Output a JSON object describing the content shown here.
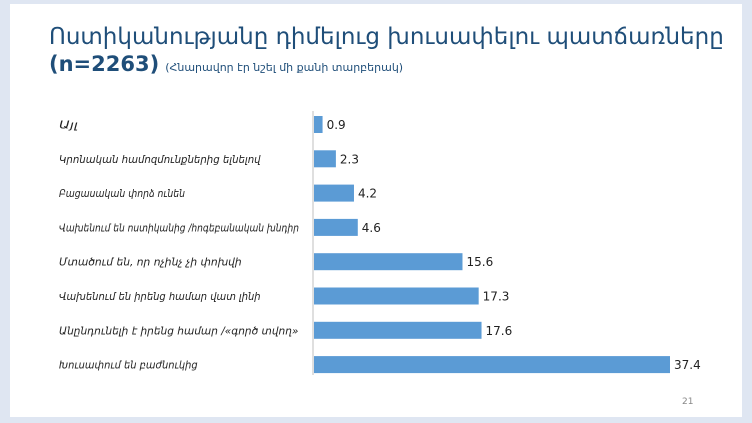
{
  "slide": {
    "title": "Ոստիկանությանը դիմելուց խուսափելու պատճառները",
    "sample": "(n=2263)",
    "note": "(Հնարավոր էր նշել մի քանի տարբերակ)",
    "page_number": "21"
  },
  "chart_data": {
    "type": "bar",
    "orientation": "horizontal",
    "categories": [
      "Այլ",
      "Կրոնական համոզմունքներից ելնելով",
      "Բացասական փորձ ունեն",
      "Վախենում են ոստիկանից /հոգեբանական խնդիր",
      "Մտածում են, որ ոչինչ չի փոխվի",
      "Վախենում են իրենց համար վատ լինի",
      "Անընդունելի է իրենց համար /«գործ տվող»",
      "Խուսափում են բաժնուկից"
    ],
    "values": [
      0.9,
      2.3,
      4.2,
      4.6,
      15.6,
      17.3,
      17.6,
      37.4
    ],
    "xlim": [
      0,
      37.4
    ],
    "bar_color": "#5b9bd5",
    "grid": false,
    "legend": "none"
  }
}
